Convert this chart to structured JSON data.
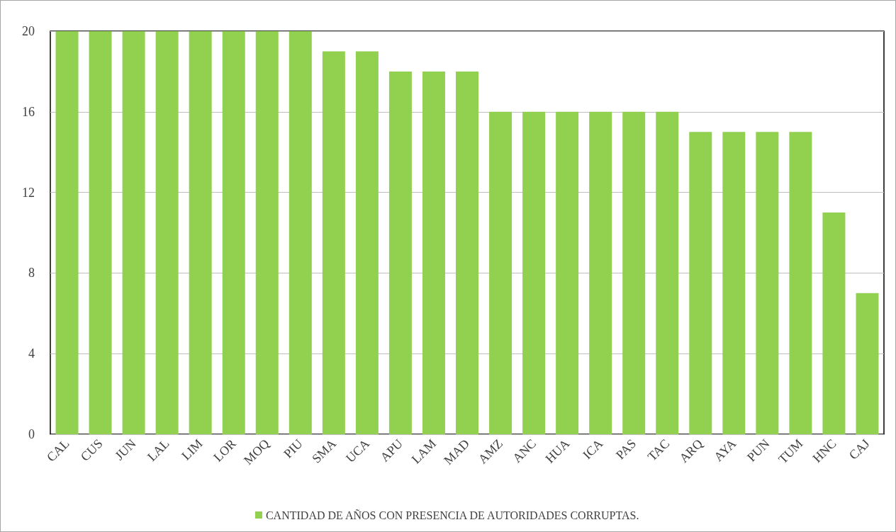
{
  "chart_data": {
    "type": "bar",
    "categories": [
      "CAL",
      "CUS",
      "JUN",
      "LAL",
      "LIM",
      "LOR",
      "MOQ",
      "PIU",
      "SMA",
      "UCA",
      "APU",
      "LAM",
      "MAD",
      "AMZ",
      "ANC",
      "HUA",
      "ICA",
      "PAS",
      "TAC",
      "ARQ",
      "AYA",
      "PUN",
      "TUM",
      "HNC",
      "CAJ"
    ],
    "series": [
      {
        "name": "CANTIDAD DE AÑOS CON PRESENCIA DE AUTORIDADES CORRUPTAS.",
        "color": "#92d050",
        "values": [
          20,
          20,
          20,
          20,
          20,
          20,
          20,
          20,
          19,
          19,
          18,
          18,
          18,
          16,
          16,
          16,
          16,
          16,
          16,
          15,
          15,
          15,
          15,
          11,
          7
        ]
      }
    ],
    "ylim": [
      0,
      20
    ],
    "yticks": [
      0,
      4,
      8,
      12,
      16,
      20
    ],
    "grid": "y",
    "legend": "bottom"
  }
}
